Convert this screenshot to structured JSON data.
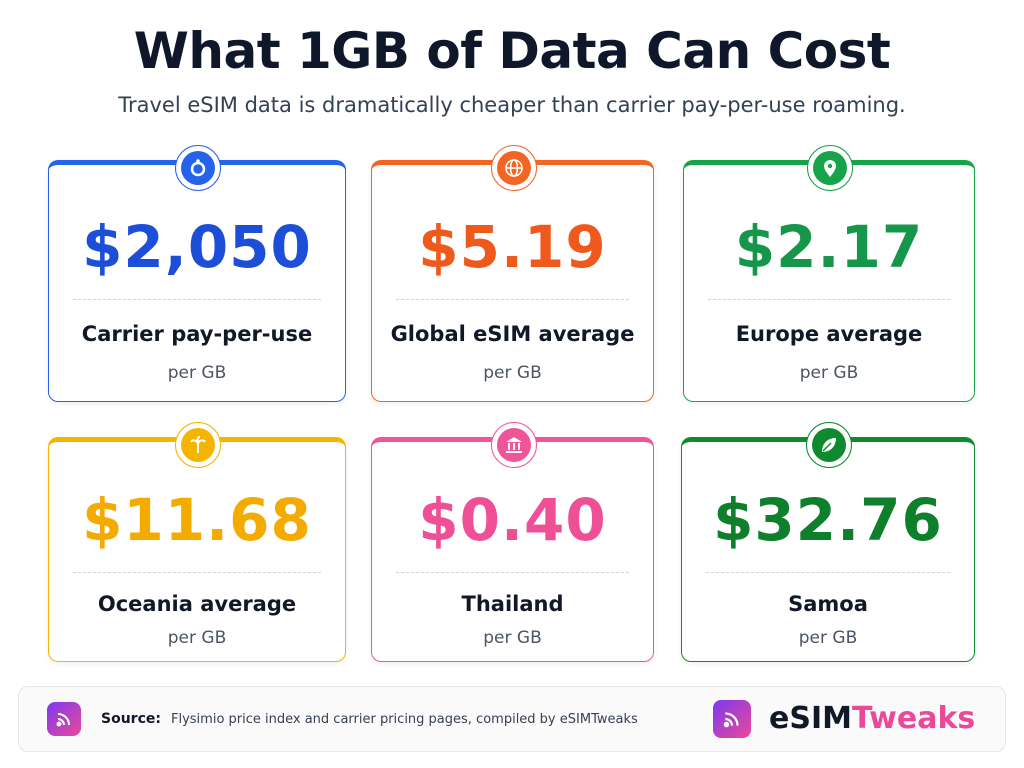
{
  "header": {
    "title": "What 1GB of Data Can Cost",
    "subtitle": "Travel eSIM data is dramatically cheaper than carrier pay-per-use roaming."
  },
  "cards": [
    {
      "value": "$2,050",
      "label": "Carrier pay-per-use",
      "unit": "per GB"
    },
    {
      "value": "$5.19",
      "label": "Global eSIM average",
      "unit": "per GB"
    },
    {
      "value": "$2.17",
      "label": "Europe average",
      "unit": "per GB"
    },
    {
      "value": "$11.68",
      "label": "Oceania average",
      "unit": "per GB"
    },
    {
      "value": "$0.40",
      "label": "Thailand",
      "unit": "per GB"
    },
    {
      "value": "$32.76",
      "label": "Samoa",
      "unit": "per GB"
    }
  ],
  "footer": {
    "source_label": "Source:",
    "source_text": "Flysimio price index and carrier pricing pages, compiled by eSIMTweaks",
    "brand_part1": "eSIM",
    "brand_part2": "Tweaks"
  }
}
